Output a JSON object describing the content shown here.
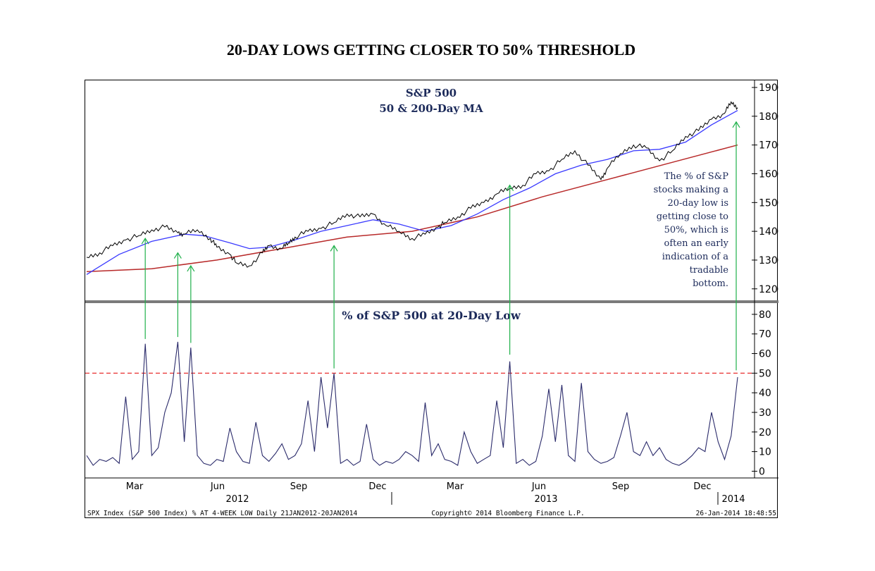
{
  "page_title": "20-DAY LOWS GETTING CLOSER TO 50% THRESHOLD",
  "chart_data": [
    {
      "type": "line",
      "title": "S&P 500",
      "subtitle": "50 & 200-Day MA",
      "ylim": [
        1170,
        1910
      ],
      "yticks": [
        1200,
        1300,
        1400,
        1500,
        1600,
        1700,
        1800,
        1900
      ],
      "x_range": [
        0,
        100
      ],
      "colors": {
        "price": "#000000",
        "ma50": "#3a3aff",
        "ma200": "#b82a2a",
        "arrows": "#1fb04a"
      },
      "series": [
        {
          "key": "price",
          "x": [
            0,
            2,
            4,
            6,
            8,
            10,
            12,
            14,
            15,
            17,
            19,
            20,
            22,
            23,
            25,
            27,
            28,
            30,
            31,
            32,
            34,
            36,
            38,
            40,
            42,
            44,
            46,
            48,
            50,
            52,
            54,
            55,
            57,
            59,
            61,
            63,
            65,
            67,
            69,
            71,
            73,
            75,
            77,
            79,
            80,
            82,
            84,
            86,
            88,
            90,
            92,
            94,
            96,
            98,
            99,
            100
          ],
          "values": [
            1310,
            1325,
            1350,
            1370,
            1385,
            1405,
            1415,
            1395,
            1390,
            1405,
            1375,
            1345,
            1320,
            1290,
            1280,
            1325,
            1350,
            1340,
            1360,
            1380,
            1400,
            1410,
            1430,
            1460,
            1450,
            1460,
            1420,
            1400,
            1375,
            1390,
            1415,
            1430,
            1450,
            1480,
            1500,
            1530,
            1550,
            1560,
            1600,
            1610,
            1650,
            1680,
            1630,
            1580,
            1620,
            1670,
            1700,
            1690,
            1645,
            1680,
            1730,
            1750,
            1790,
            1810,
            1850,
            1830
          ]
        },
        {
          "key": "ma50",
          "x": [
            0,
            5,
            10,
            15,
            18,
            22,
            25,
            28,
            32,
            36,
            40,
            44,
            48,
            52,
            56,
            60,
            64,
            68,
            72,
            76,
            80,
            84,
            88,
            92,
            96,
            100
          ],
          "values": [
            1250,
            1320,
            1365,
            1390,
            1385,
            1360,
            1340,
            1345,
            1370,
            1400,
            1420,
            1440,
            1425,
            1400,
            1420,
            1460,
            1510,
            1550,
            1600,
            1630,
            1650,
            1680,
            1685,
            1710,
            1770,
            1820
          ]
        },
        {
          "key": "ma200",
          "x": [
            0,
            10,
            20,
            30,
            40,
            50,
            60,
            70,
            80,
            90,
            100
          ],
          "values": [
            1260,
            1270,
            1300,
            1340,
            1380,
            1400,
            1450,
            1520,
            1580,
            1640,
            1700
          ]
        }
      ]
    },
    {
      "type": "line",
      "title": "% of S&P 500 at 20-Day Low",
      "ylim": [
        -2,
        85
      ],
      "yticks": [
        0,
        10,
        20,
        30,
        40,
        50,
        60,
        70,
        80
      ],
      "threshold": 50,
      "colors": {
        "line": "#2b2b6b",
        "threshold": "#e83030"
      },
      "x": [
        0,
        1,
        2,
        3,
        4,
        5,
        6,
        7,
        8,
        9,
        10,
        11,
        12,
        13,
        14,
        15,
        16,
        17,
        18,
        19,
        20,
        21,
        22,
        23,
        24,
        25,
        26,
        27,
        28,
        29,
        30,
        31,
        32,
        33,
        34,
        35,
        36,
        37,
        38,
        39,
        40,
        41,
        42,
        43,
        44,
        45,
        46,
        47,
        48,
        49,
        50,
        51,
        52,
        53,
        54,
        55,
        56,
        57,
        58,
        59,
        60,
        61,
        62,
        63,
        64,
        65,
        66,
        67,
        68,
        69,
        70,
        71,
        72,
        73,
        74,
        75,
        76,
        77,
        78,
        79,
        80,
        81,
        82,
        83,
        84,
        85,
        86,
        87,
        88,
        89,
        90,
        91,
        92,
        93,
        94,
        95,
        96,
        97,
        98,
        99,
        100
      ],
      "values": [
        8,
        3,
        6,
        5,
        7,
        4,
        38,
        6,
        10,
        65,
        8,
        12,
        30,
        40,
        66,
        15,
        63,
        8,
        4,
        3,
        6,
        5,
        22,
        10,
        5,
        4,
        25,
        8,
        5,
        9,
        14,
        6,
        8,
        14,
        36,
        10,
        48,
        22,
        50,
        4,
        6,
        3,
        5,
        24,
        6,
        3,
        5,
        4,
        6,
        10,
        8,
        5,
        35,
        8,
        14,
        6,
        5,
        3,
        20,
        10,
        4,
        6,
        8,
        36,
        12,
        56,
        4,
        6,
        3,
        5,
        18,
        42,
        15,
        44,
        8,
        5,
        45,
        10,
        6,
        4,
        5,
        7,
        18,
        30,
        10,
        8,
        15,
        8,
        12,
        6,
        4,
        3,
        5,
        8,
        12,
        10,
        30,
        15,
        6,
        18,
        48
      ]
    }
  ],
  "x_axis": {
    "months": [
      "Mar",
      "Jun",
      "Sep",
      "Dec",
      "Mar",
      "Jun",
      "Sep",
      "Dec"
    ],
    "years": [
      "2012",
      "2013",
      "2014"
    ]
  },
  "annotation": {
    "lines": [
      "The % of S&P",
      "stocks making a",
      "20-day low is",
      "getting close to",
      "50%, which is",
      "often an early",
      "indication of a",
      "tradable",
      "bottom."
    ]
  },
  "footer": {
    "left": "SPX Index (S&P 500 Index) % AT 4-WEEK LOW  Daily 21JAN2012-20JAN2014",
    "center": "Copyright© 2014 Bloomberg Finance L.P.",
    "right": "26-Jan-2014 18:48:55"
  }
}
